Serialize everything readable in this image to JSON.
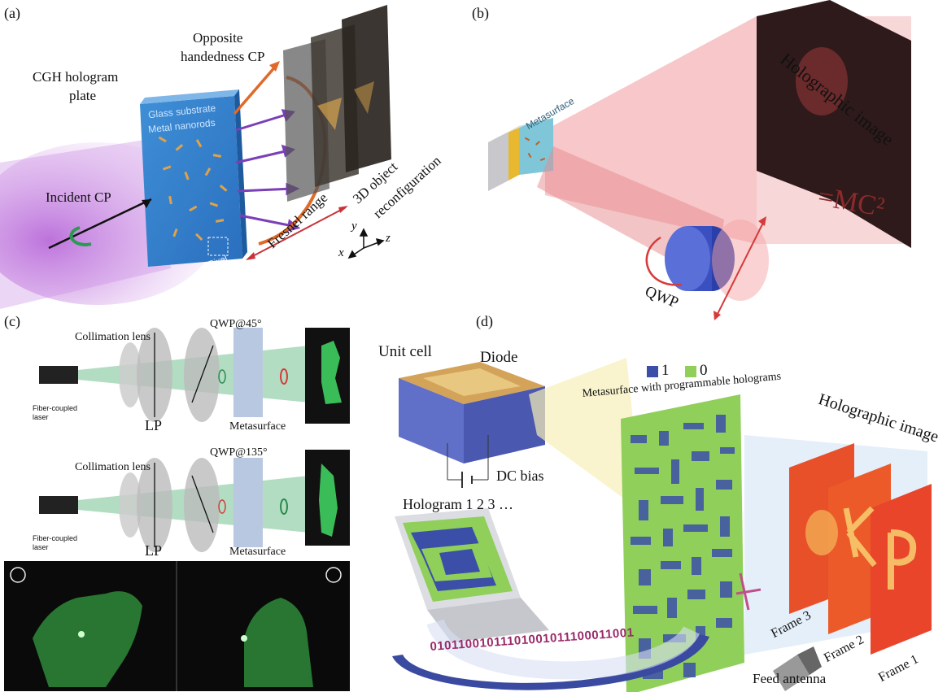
{
  "panel_a": {
    "label": "(a)",
    "cgh_line1": "CGH hologram",
    "cgh_line2": "plate",
    "opposite_line1": "Opposite",
    "opposite_line2": "handedness CP",
    "glass": "Glass substrate",
    "nanorods": "Metal nanorods",
    "incident": "Incident CP",
    "pixel": "Pixel",
    "fresnel": "Fresnel range",
    "obj_line1": "3D object",
    "obj_line2": "reconfiguration",
    "axis_x": "x",
    "axis_y": "y",
    "axis_z": "z"
  },
  "panel_b": {
    "label": "(b)",
    "metasurface": "Metasurface",
    "holo": "Holographic image",
    "qwp": "QWP",
    "eq": "=MC²"
  },
  "panel_c": {
    "label": "(c)",
    "collimation1": "Collimation lens",
    "qwp45": "QWP@45°",
    "laser1_l1": "Fiber-coupled",
    "laser1_l2": "laser",
    "lp1": "LP",
    "meta1": "Metasurface",
    "collimation2": "Collimation lens",
    "qwp135": "QWP@135°",
    "laser2_l1": "Fiber-coupled",
    "laser2_l2": "laser",
    "lp2": "LP",
    "meta2": "Metasurface"
  },
  "panel_d": {
    "label": "(d)",
    "unit_cell": "Unit cell",
    "diode": "Diode",
    "legend_1": "1",
    "legend_0": "0",
    "meta_title": "Metasurface with programmable holograms",
    "dc_bias": "DC bias",
    "hologram": "Hologram 1 2 3 …",
    "holo_image": "Holographic image",
    "frame3": "Frame 3",
    "frame2": "Frame 2",
    "frame1": "Frame 1",
    "bits": "01011001011101001011100011001",
    "feed": "Feed antenna",
    "color_1": "#3b4fa8",
    "color_0": "#8fcf5a"
  }
}
